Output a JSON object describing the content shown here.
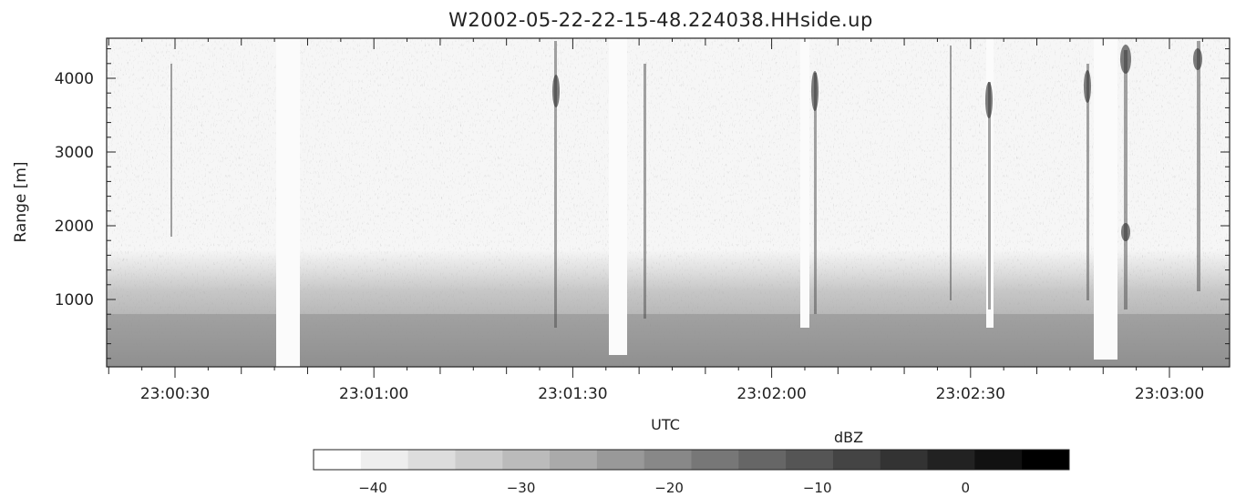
{
  "chart_data": {
    "type": "heatmap",
    "title": "W2002-05-22-22-15-48.224038.HHside.up",
    "xlabel": "UTC",
    "ylabel": "Range [m]",
    "x_range": [
      "23:00:20",
      "23:03:13"
    ],
    "y_range": [
      100,
      4550
    ],
    "x_ticks": [
      {
        "label": "23:00:30",
        "t": 30
      },
      {
        "label": "23:01:00",
        "t": 60
      },
      {
        "label": "23:01:30",
        "t": 90
      },
      {
        "label": "23:02:00",
        "t": 120
      },
      {
        "label": "23:02:30",
        "t": 150
      },
      {
        "label": "23:03:00",
        "t": 180
      }
    ],
    "y_ticks": [
      1000,
      2000,
      3000,
      4000
    ],
    "colorbar": {
      "label": "dBZ",
      "range": [
        -44,
        7
      ],
      "ticks": [
        -40,
        -30,
        -20,
        -10,
        0
      ],
      "levels": 16,
      "colormap": "grayscale (white = low, black = high)"
    }
  }
}
